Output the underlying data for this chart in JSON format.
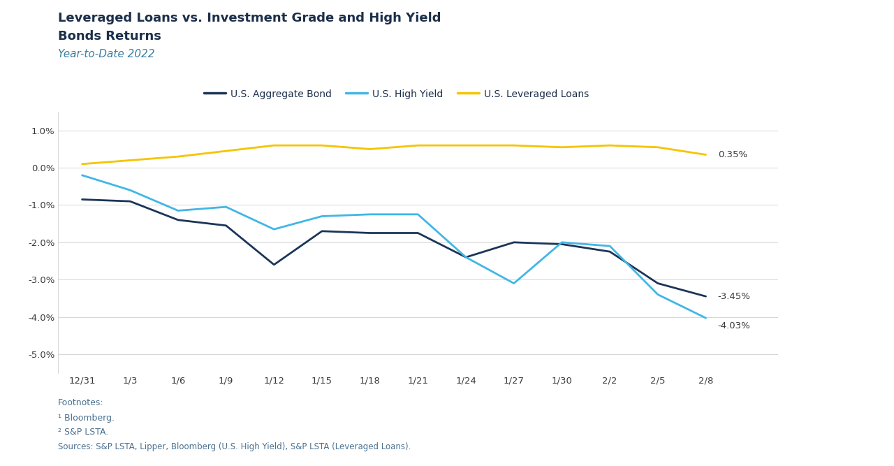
{
  "title_line1": "Leveraged Loans vs. Investment Grade and High Yield",
  "title_line2": "Bonds Returns",
  "subtitle": "Year-to-Date 2022",
  "x_labels": [
    "12/31",
    "1/3",
    "1/6",
    "1/9",
    "1/12",
    "1/15",
    "1/18",
    "1/21",
    "1/24",
    "1/27",
    "1/30",
    "2/2",
    "2/5",
    "2/8"
  ],
  "agg_bond_data": [
    -0.0085,
    -0.009,
    -0.014,
    -0.0155,
    -0.026,
    -0.017,
    -0.0175,
    -0.0175,
    -0.024,
    -0.02,
    -0.0205,
    -0.0225,
    -0.031,
    -0.0345
  ],
  "high_yield_data": [
    -0.002,
    -0.006,
    -0.0115,
    -0.0105,
    -0.0165,
    -0.013,
    -0.0125,
    -0.0125,
    -0.024,
    -0.031,
    -0.02,
    -0.021,
    -0.034,
    -0.0403
  ],
  "lev_loans_data": [
    0.001,
    0.002,
    0.003,
    0.0045,
    0.006,
    0.006,
    0.005,
    0.006,
    0.006,
    0.006,
    0.0055,
    0.006,
    0.0055,
    0.0035
  ],
  "agg_bond_color": "#1c3557",
  "high_yield_color": "#41b6e6",
  "leveraged_loans_color": "#f5c400",
  "background_color": "#ffffff",
  "text_color": "#3a3a3a",
  "title_color": "#1c2f4a",
  "subtitle_color": "#3a7fa0",
  "footnote_color": "#4a7090",
  "grid_color": "#d0d0d0",
  "end_label_agg": "-3.45%",
  "end_label_hy": "-4.03%",
  "end_label_ll": "0.35%",
  "footnote_header": "Footnotes:",
  "footnote1": "¹ Bloomberg.",
  "footnote2": "² S&P LSTA.",
  "footnote3": "Sources: S&P LSTA, Lipper, Bloomberg (U.S. High Yield), S&P LSTA (Leveraged Loans).",
  "ylim": [
    -0.055,
    0.015
  ],
  "yticks": [
    0.01,
    0.0,
    -0.01,
    -0.02,
    -0.03,
    -0.04,
    -0.05
  ]
}
